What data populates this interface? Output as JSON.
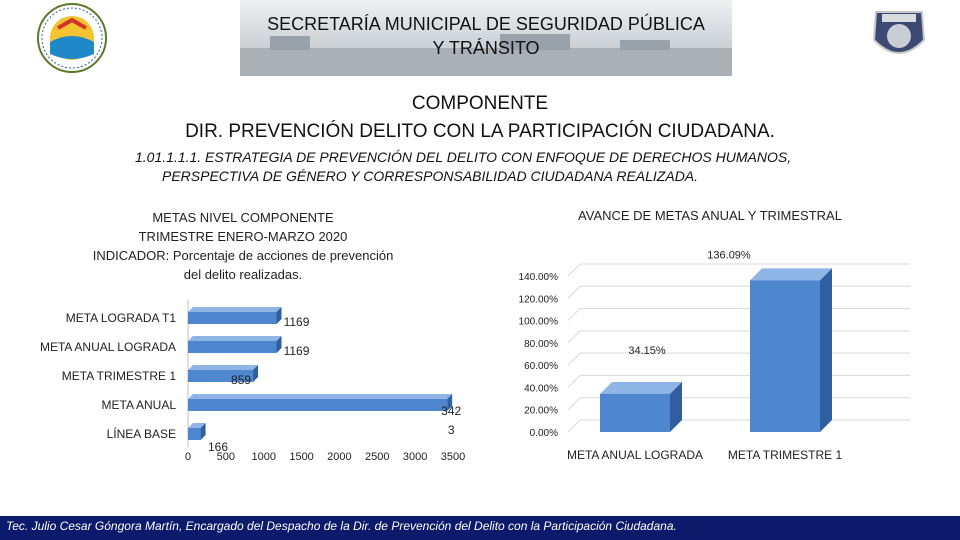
{
  "header": {
    "title_line1": "SECRETARÍA MUNICIPAL DE SEGURIDAD PÚBLICA",
    "title_line2": "Y TRÁNSITO",
    "logo_left_text": "MUNICIPIO DE BENITO JUÁREZ · QUINTANA ROO",
    "logo_right_text": "POLICÍA"
  },
  "component": {
    "title": "COMPONENTE",
    "subtitle": "DIR. PREVENCIÓN DELITO CON LA PARTICIPACIÓN CIUDADANA.",
    "strategy_line1": "1.01.1.1.1. ESTRATEGIA DE PREVENCIÓN DEL DELITO CON ENFOQUE DE DERECHOS HUMANOS,",
    "strategy_line2": "PERSPECTIVA DE GÉNERO Y CORRESPONSABILIDAD CIUDADANA REALIZADA."
  },
  "left_heading": {
    "line1": "METAS NIVEL COMPONENTE",
    "line2": "TRIMESTRE ENERO-MARZO 2020",
    "line3": "INDICADOR: Porcentaje de acciones  de prevención",
    "line4": "del delito realizadas."
  },
  "chart_data": [
    {
      "type": "bar",
      "orientation": "horizontal",
      "categories": [
        "META LOGRADA T1",
        "META ANUAL LOGRADA",
        "META TRIMESTRE 1",
        "META ANUAL",
        "LÍNEA BASE"
      ],
      "values": [
        1169,
        1169,
        859,
        3423,
        166
      ],
      "value_labels": [
        "1169",
        "1169",
        "859",
        "342\n3",
        "166"
      ],
      "xlim": [
        0,
        3500
      ],
      "x_ticks": [
        "0",
        "500",
        "1000",
        "1500",
        "2000",
        "2500",
        "3000",
        "3500"
      ],
      "color": "#4f86d0"
    },
    {
      "type": "bar",
      "title": "AVANCE DE METAS ANUAL Y TRIMESTRAL",
      "categories": [
        "META ANUAL LOGRADA",
        "META TRIMESTRE 1"
      ],
      "values": [
        34.15,
        136.09
      ],
      "value_labels": [
        "34.15%",
        "136.09%"
      ],
      "ylim": [
        0,
        140
      ],
      "y_ticks": [
        "0.00%",
        "20.00%",
        "40.00%",
        "60.00%",
        "80.00%",
        "100.00%",
        "120.00%",
        "140.00%"
      ],
      "color": "#4f86d0"
    }
  ],
  "footer": {
    "text": "Tec. Julio Cesar Góngora Martín, Encargado del Despacho de la Dir. de Prevención del Delito con la Participación Ciudadana."
  }
}
